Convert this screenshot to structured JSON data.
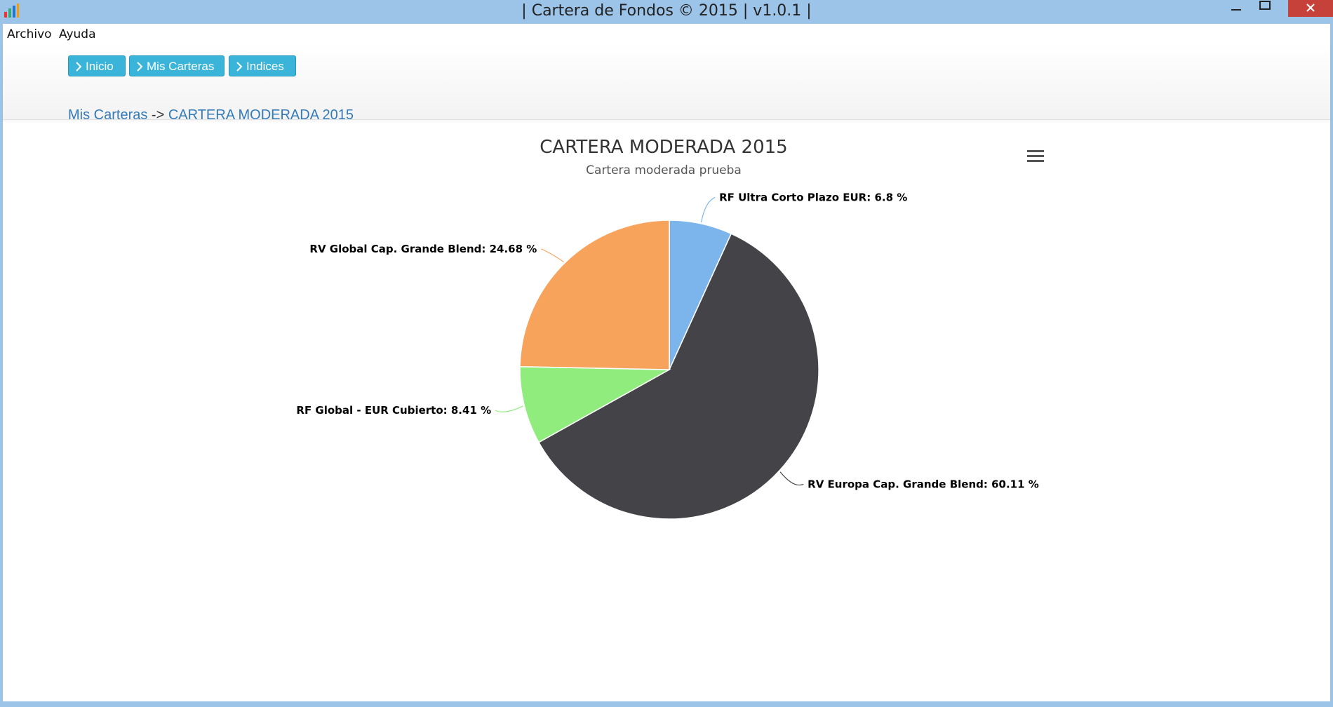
{
  "window": {
    "title": "| Cartera de Fondos © 2015 | v1.0.1 |"
  },
  "menu": [
    "Archivo",
    "Ayuda"
  ],
  "toolbar": {
    "buttons": [
      "Inicio",
      "Mis Carteras",
      "Indices"
    ]
  },
  "breadcrumb": {
    "parent": "Mis Carteras",
    "separator": "->",
    "current": "CARTERA MODERADA 2015"
  },
  "chart_data": {
    "type": "pie",
    "title": "CARTERA MODERADA 2015",
    "subtitle": "Cartera moderada prueba",
    "values": [
      6.8,
      60.11,
      8.41,
      24.68
    ],
    "value_labels": [
      "RF Ultra Corto Plazo EUR: 6.8 %",
      "RV Europa Cap. Grande Blend: 60.11 %",
      "RF Global - EUR Cubierto: 8.41 %",
      "RV Global Cap. Grande Blend: 24.68 %"
    ],
    "colors": [
      "#7cb5ec",
      "#434348",
      "#90ed7d",
      "#f7a35c"
    ]
  }
}
